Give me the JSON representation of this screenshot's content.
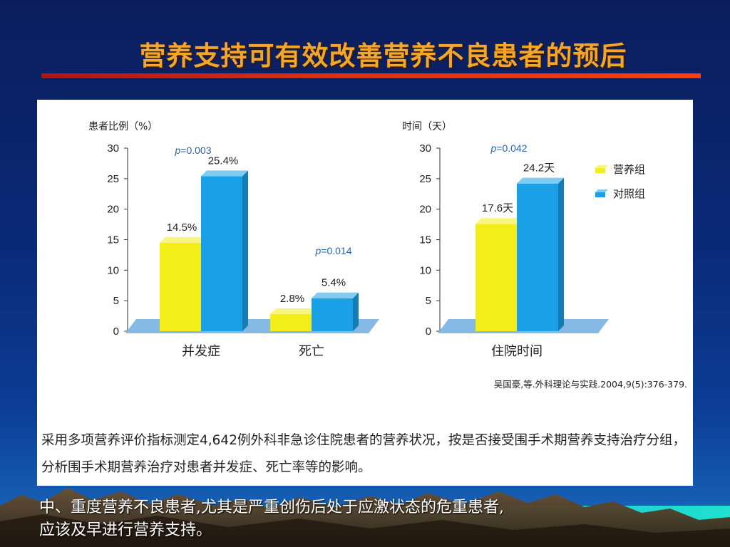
{
  "slide": {
    "title": "营养支持可有效改善营养不良患者的预后",
    "citation": "吴国豪,等.外科理论与实践.2004,9(5):376-379.",
    "description": "采用多项营养评价指标测定4,642例外科非急诊住院患者的营养状况，按是否接受围手术期营养支持治疗分组，分析围手术期营养治疗对患者并发症、死亡率等的影响。",
    "conclusion_line1": "中、重度营养不良患者,尤其是严重创伤后处于应激状态的危重患者,",
    "conclusion_line2": "应该及早进行营养支持。"
  },
  "colors": {
    "nutrition": "#f3ee1a",
    "control": "#1aa0e6",
    "floor": "#86b9e4",
    "title": "#f2a72a",
    "p_value": "#2a62b5"
  },
  "chart_data": [
    {
      "type": "bar",
      "ylabel": "患者比例（%）",
      "ylim": [
        0,
        30
      ],
      "yticks": [
        "0",
        "5",
        "10",
        "15",
        "20",
        "25",
        "30"
      ],
      "categories": [
        "并发症",
        "死亡"
      ],
      "series": [
        {
          "name": "营养组",
          "values": [
            14.5,
            2.8
          ],
          "labels": [
            "14.5%",
            "2.8%"
          ]
        },
        {
          "name": "对照组",
          "values": [
            25.4,
            5.4
          ],
          "labels": [
            "25.4%",
            "5.4%"
          ]
        }
      ],
      "p_values": [
        "p=0.003",
        "p=0.014"
      ]
    },
    {
      "type": "bar",
      "ylabel": "时间（天）",
      "ylim": [
        0,
        30
      ],
      "yticks": [
        "0",
        "5",
        "10",
        "15",
        "20",
        "25",
        "30"
      ],
      "categories": [
        "住院时间"
      ],
      "series": [
        {
          "name": "营养组",
          "values": [
            17.6
          ],
          "labels": [
            "17.6天"
          ]
        },
        {
          "name": "对照组",
          "values": [
            24.2
          ],
          "labels": [
            "24.2天"
          ]
        }
      ],
      "p_values": [
        "p=0.042"
      ],
      "legend": {
        "position": "right",
        "entries": [
          "营养组",
          "对照组"
        ]
      }
    }
  ]
}
